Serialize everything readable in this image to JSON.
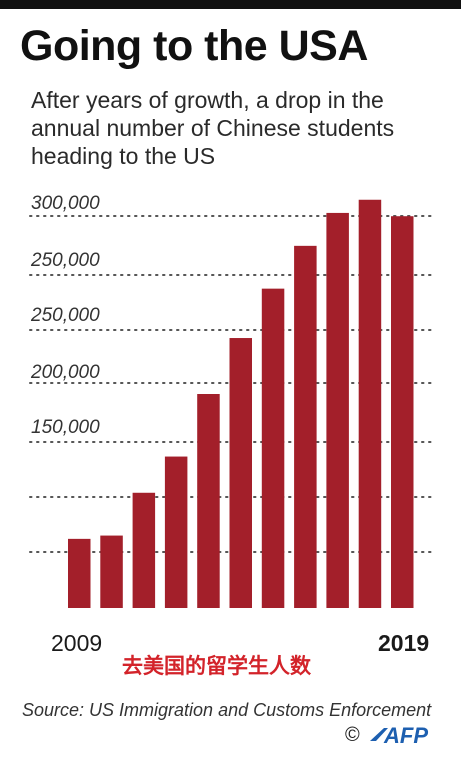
{
  "title": "Going to the USA",
  "subtitle": "After years of growth, a drop in the annual number of Chinese students heading to the US",
  "chart_data": {
    "type": "bar",
    "categories": [
      "2009",
      "2010",
      "2011",
      "2012",
      "2013",
      "2014",
      "2015",
      "2016",
      "2017",
      "2018",
      "2019"
    ],
    "values": [
      105000,
      110000,
      175000,
      230000,
      325000,
      410000,
      485000,
      550000,
      600000,
      620000,
      595000
    ],
    "tick_labels": [
      "150,000",
      "200,000",
      "250,000",
      "250,000",
      "300,000"
    ],
    "x_start_label": "2009",
    "x_end_label": "2019",
    "bar_color": "#a31f2a",
    "grid": "dotted horizontal",
    "ylim": [
      0,
      650000
    ]
  },
  "caption_cn": "去美国的留学生人数",
  "source": "Source: US Immigration and Customs Enforcement",
  "copyright": "©",
  "logo": {
    "name": "afp-logo",
    "text": "AFP",
    "color": "#1d5fb0"
  }
}
